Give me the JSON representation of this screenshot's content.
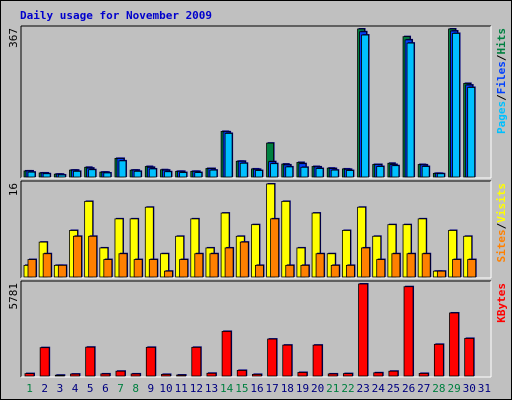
{
  "title": "Daily usage for November 2009",
  "colors": {
    "pages": "#00c0ff",
    "files": "#0040ff",
    "hits": "#008040",
    "visits": "#ffff00",
    "sites": "#ff8000",
    "kbytes": "#ff0000",
    "weekend_label": "#008040",
    "weekday_label": "#000080",
    "title": "#0000cc"
  },
  "chart_data": [
    {
      "type": "bar",
      "panel": "hits-files-pages",
      "max_label": "367",
      "ylim": [
        0,
        367
      ],
      "legend": [
        "Pages",
        "/",
        "Files",
        "/",
        "Hits"
      ],
      "categories": [
        "1",
        "2",
        "3",
        "4",
        "5",
        "6",
        "7",
        "8",
        "9",
        "10",
        "11",
        "12",
        "13",
        "14",
        "15",
        "16",
        "17",
        "18",
        "19",
        "20",
        "21",
        "22",
        "23",
        "24",
        "25",
        "26",
        "27",
        "28",
        "29",
        "30",
        "31"
      ],
      "series": [
        {
          "name": "Hits",
          "values": [
            15,
            10,
            7,
            17,
            24,
            12,
            46,
            17,
            26,
            18,
            14,
            14,
            21,
            113,
            39,
            20,
            84,
            32,
            36,
            26,
            22,
            20,
            367,
            31,
            34,
            348,
            31,
            9,
            367,
            232,
            0
          ]
        },
        {
          "name": "Files",
          "values": [
            15,
            10,
            7,
            17,
            22,
            12,
            46,
            17,
            24,
            17,
            14,
            14,
            21,
            112,
            39,
            19,
            38,
            30,
            33,
            25,
            21,
            19,
            360,
            31,
            31,
            340,
            30,
            9,
            362,
            228,
            0
          ]
        },
        {
          "name": "Pages",
          "values": [
            12,
            8,
            5,
            14,
            18,
            10,
            40,
            14,
            20,
            13,
            11,
            11,
            17,
            108,
            34,
            16,
            33,
            25,
            24,
            21,
            17,
            16,
            352,
            26,
            28,
            332,
            26,
            8,
            356,
            222,
            0
          ]
        }
      ]
    },
    {
      "type": "bar",
      "panel": "visits-sites",
      "max_label": "16",
      "ylim": [
        0,
        16
      ],
      "legend": [
        "Sites",
        "/",
        "Visits"
      ],
      "categories": [
        "1",
        "2",
        "3",
        "4",
        "5",
        "6",
        "7",
        "8",
        "9",
        "10",
        "11",
        "12",
        "13",
        "14",
        "15",
        "16",
        "17",
        "18",
        "19",
        "20",
        "21",
        "22",
        "23",
        "24",
        "25",
        "26",
        "27",
        "28",
        "29",
        "30",
        "31"
      ],
      "series": [
        {
          "name": "Visits",
          "values": [
            2,
            6,
            2,
            8,
            13,
            5,
            10,
            10,
            12,
            4,
            7,
            10,
            5,
            11,
            7,
            9,
            16,
            13,
            5,
            11,
            4,
            8,
            12,
            7,
            9,
            9,
            10,
            1,
            8,
            7,
            0
          ]
        },
        {
          "name": "Sites",
          "values": [
            3,
            4,
            2,
            7,
            7,
            3,
            4,
            3,
            3,
            1,
            3,
            4,
            4,
            5,
            6,
            2,
            10,
            2,
            2,
            4,
            2,
            2,
            5,
            3,
            4,
            4,
            4,
            1,
            3,
            3,
            0
          ]
        }
      ]
    },
    {
      "type": "bar",
      "panel": "kbytes",
      "max_label": "5781",
      "ylim": [
        0,
        5781
      ],
      "legend": [
        "KBytes"
      ],
      "categories": [
        "1",
        "2",
        "3",
        "4",
        "5",
        "6",
        "7",
        "8",
        "9",
        "10",
        "11",
        "12",
        "13",
        "14",
        "15",
        "16",
        "17",
        "18",
        "19",
        "20",
        "21",
        "22",
        "23",
        "24",
        "25",
        "26",
        "27",
        "28",
        "29",
        "30",
        "31"
      ],
      "series": [
        {
          "name": "KBytes",
          "values": [
            150,
            1780,
            50,
            120,
            1810,
            130,
            300,
            130,
            1800,
            100,
            60,
            1800,
            170,
            2800,
            350,
            100,
            2320,
            1940,
            220,
            1940,
            130,
            150,
            5781,
            200,
            300,
            5610,
            160,
            1990,
            3960,
            2360,
            0
          ]
        }
      ]
    }
  ],
  "weekend_days": [
    1,
    7,
    8,
    14,
    15,
    21,
    22,
    28,
    29
  ]
}
